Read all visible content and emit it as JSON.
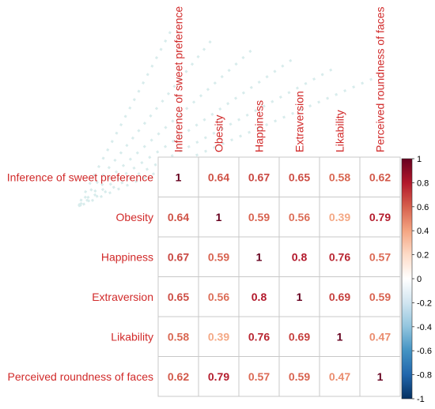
{
  "chart_data": {
    "type": "heatmap",
    "variables": [
      "Inference of sweet preference",
      "Obesity",
      "Happiness",
      "Extraversion",
      "Likability",
      "Perceived roundness of faces"
    ],
    "matrix": [
      [
        1,
        0.64,
        0.67,
        0.65,
        0.58,
        0.62
      ],
      [
        0.64,
        1,
        0.59,
        0.56,
        0.39,
        0.79
      ],
      [
        0.67,
        0.59,
        1,
        0.8,
        0.76,
        0.57
      ],
      [
        0.65,
        0.56,
        0.8,
        1,
        0.69,
        0.59
      ],
      [
        0.58,
        0.39,
        0.76,
        0.69,
        1,
        0.47
      ],
      [
        0.62,
        0.79,
        0.57,
        0.59,
        0.47,
        1
      ]
    ],
    "labels": [
      [
        "1",
        "0.64",
        "0.67",
        "0.65",
        "0.58",
        "0.62"
      ],
      [
        "0.64",
        "1",
        "0.59",
        "0.56",
        "0.39",
        "0.79"
      ],
      [
        "0.67",
        "0.59",
        "1",
        "0.8",
        "0.76",
        "0.57"
      ],
      [
        "0.65",
        "0.56",
        "0.8",
        "1",
        "0.69",
        "0.59"
      ],
      [
        "0.58",
        "0.39",
        "0.76",
        "0.69",
        "1",
        "0.47"
      ],
      [
        "0.62",
        "0.79",
        "0.57",
        "0.59",
        "0.47",
        "1"
      ]
    ],
    "color_scale": {
      "range": [
        -1,
        1
      ],
      "ticks": [
        "1",
        "0.8",
        "0.6",
        "0.4",
        "0.2",
        "0",
        "-0.2",
        "-0.4",
        "-0.6",
        "-0.8",
        "-1"
      ],
      "colors": [
        "#67001f",
        "#b2182b",
        "#d6604d",
        "#f4a582",
        "#fddbc7",
        "#ffffff",
        "#d1e5f0",
        "#92c5de",
        "#4393c3",
        "#2166ac",
        "#053061"
      ]
    },
    "legend_position": "right",
    "title": "",
    "xlabel": "",
    "ylabel": ""
  }
}
